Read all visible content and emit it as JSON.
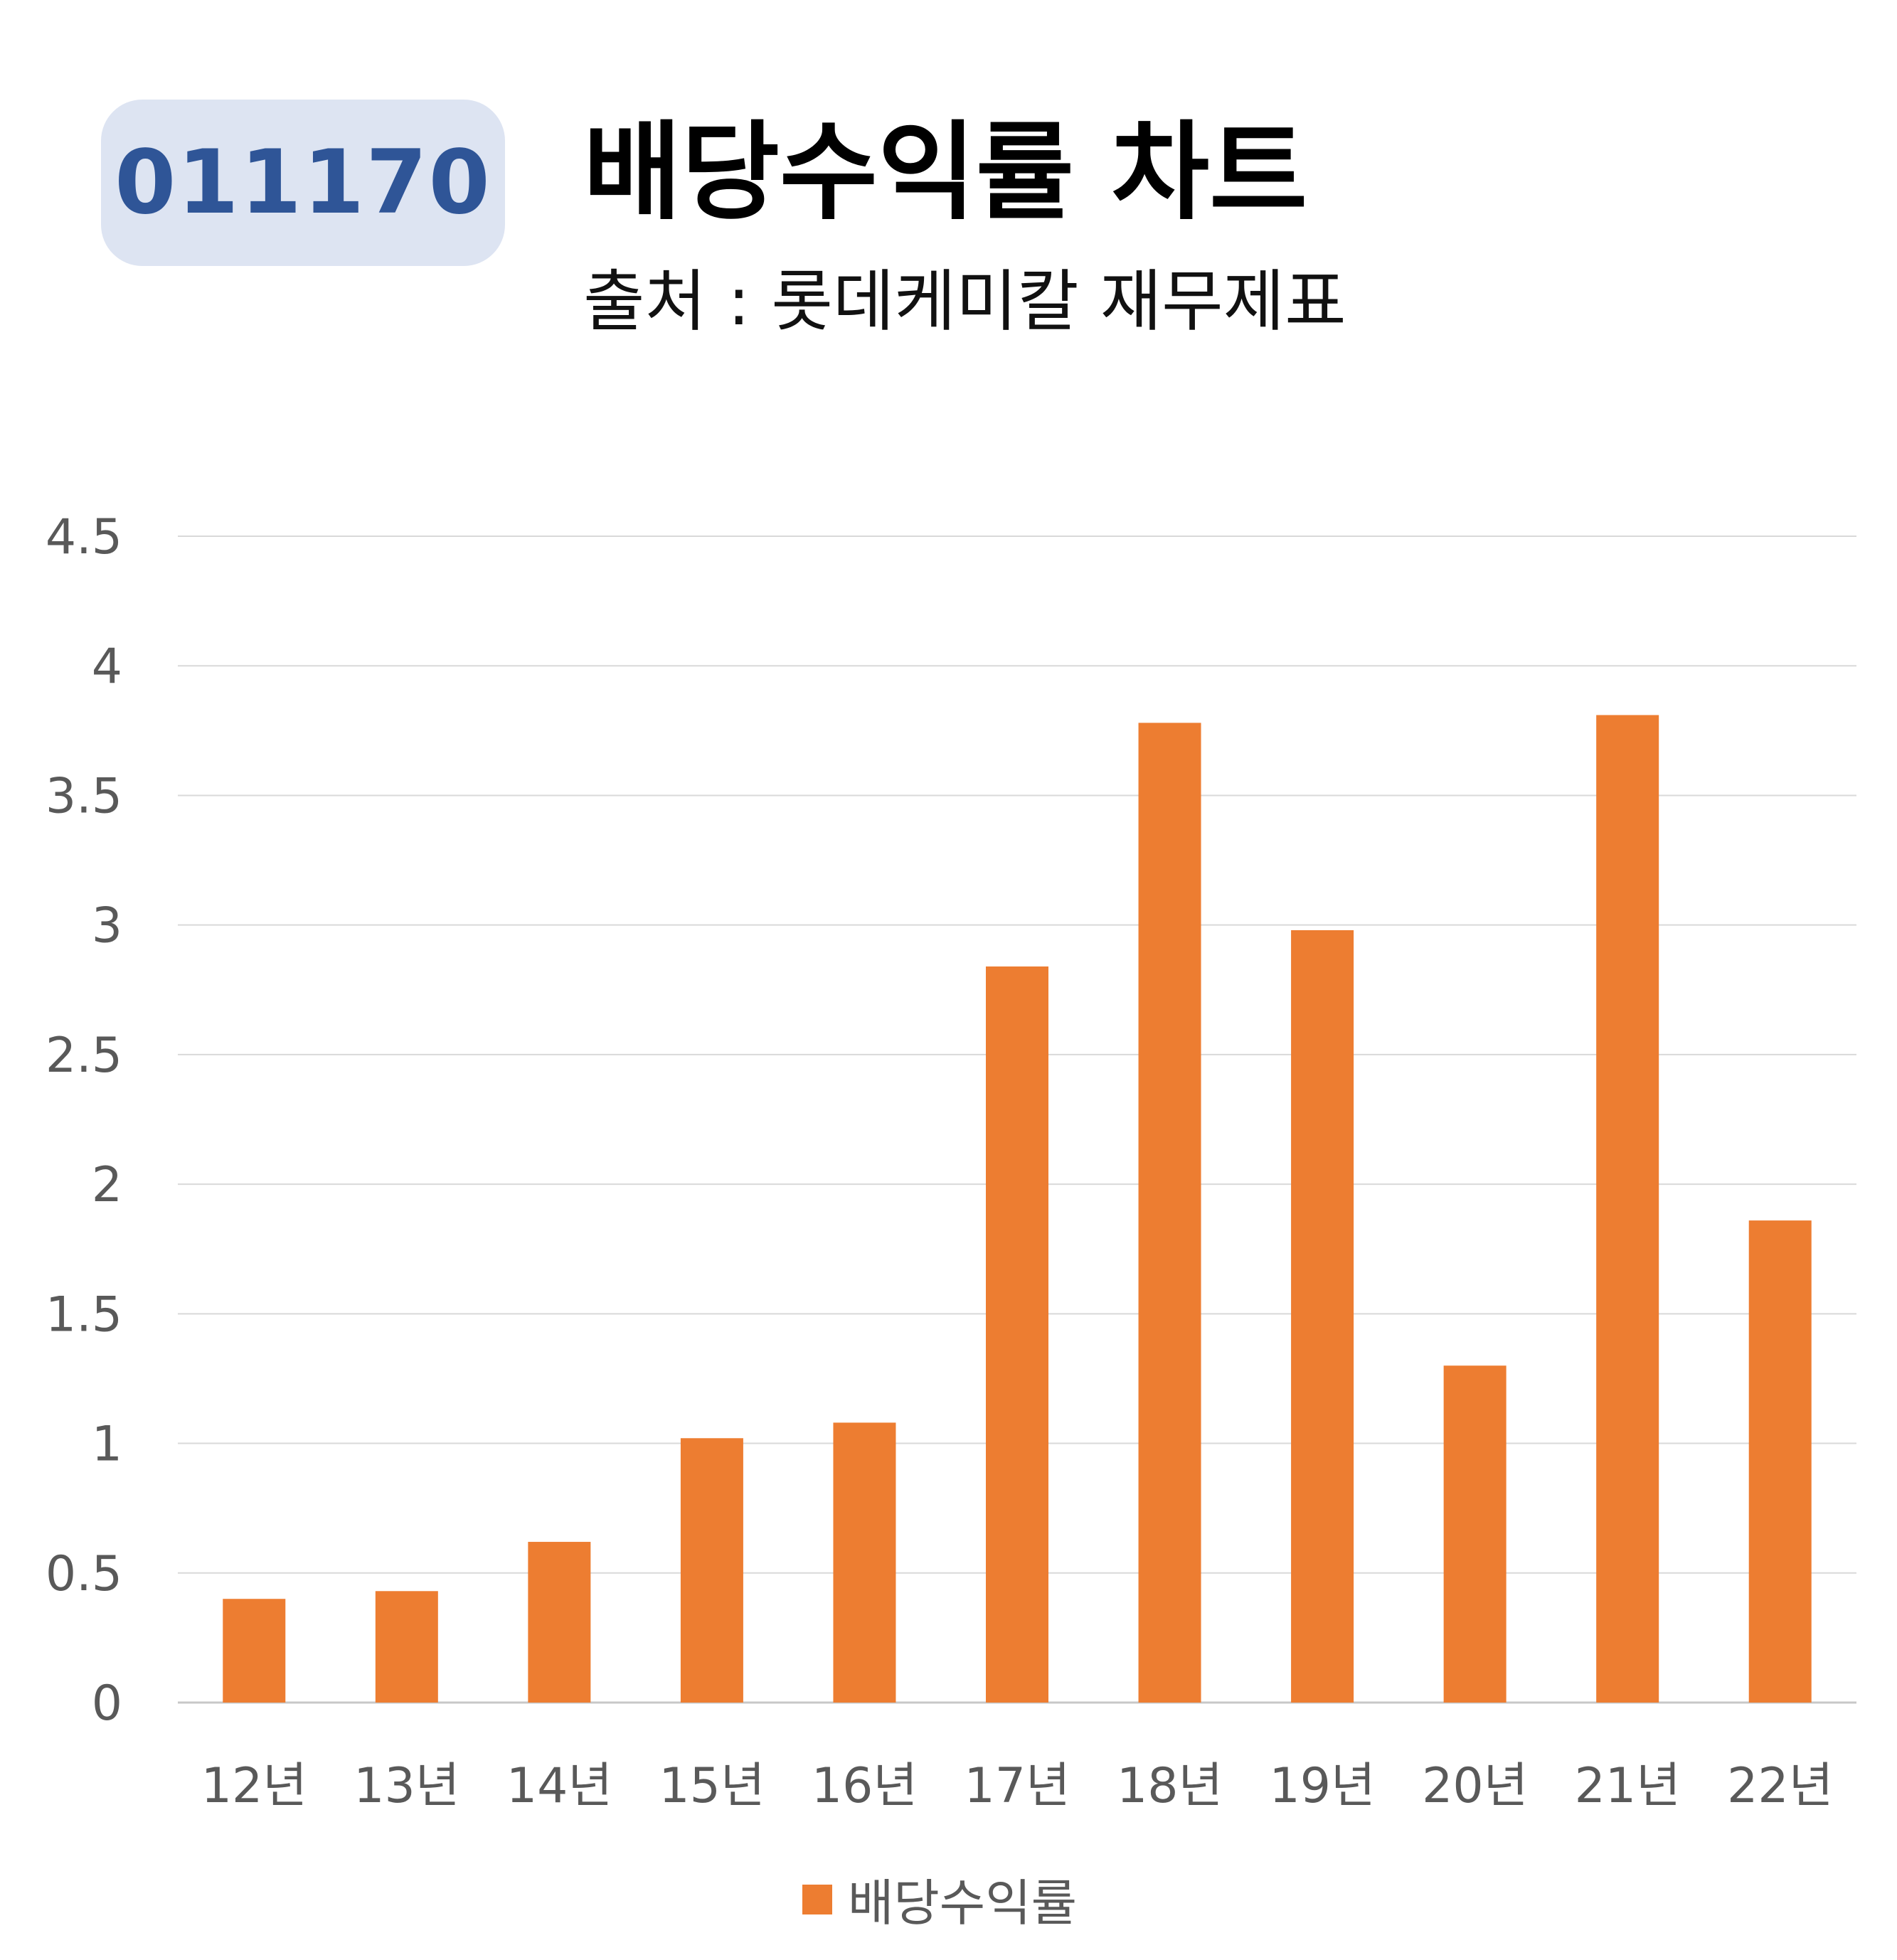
{
  "badge": {
    "code": "011170"
  },
  "header": {
    "title": "배당수익률 차트",
    "subtitle": "출처 : 롯데케미칼 재무제표"
  },
  "colors": {
    "bar": "#ED7D31",
    "badge_bg": "#DDE4F2",
    "badge_text": "#2F5597",
    "grid": "#D9D9D9",
    "tick_text": "#595959"
  },
  "legend": {
    "label": "배당수익률",
    "placement": "bottom"
  },
  "chart_data": {
    "type": "bar",
    "title": "배당수익률 차트",
    "subtitle": "출처 : 롯데케미칼 재무제표",
    "xlabel": "",
    "ylabel": "",
    "categories": [
      "12년",
      "13년",
      "14년",
      "15년",
      "16년",
      "17년",
      "18년",
      "19년",
      "20년",
      "21년",
      "22년"
    ],
    "series": [
      {
        "name": "배당수익률",
        "values": [
          0.4,
          0.43,
          0.62,
          1.02,
          1.08,
          2.84,
          3.78,
          2.98,
          1.3,
          3.81,
          1.86
        ]
      }
    ],
    "ylim": [
      0,
      4.5
    ],
    "yticks": [
      "0",
      "0.5",
      "1",
      "1.5",
      "2",
      "2.5",
      "3",
      "3.5",
      "4",
      "4.5"
    ],
    "grid": true,
    "legend_position": "bottom"
  }
}
